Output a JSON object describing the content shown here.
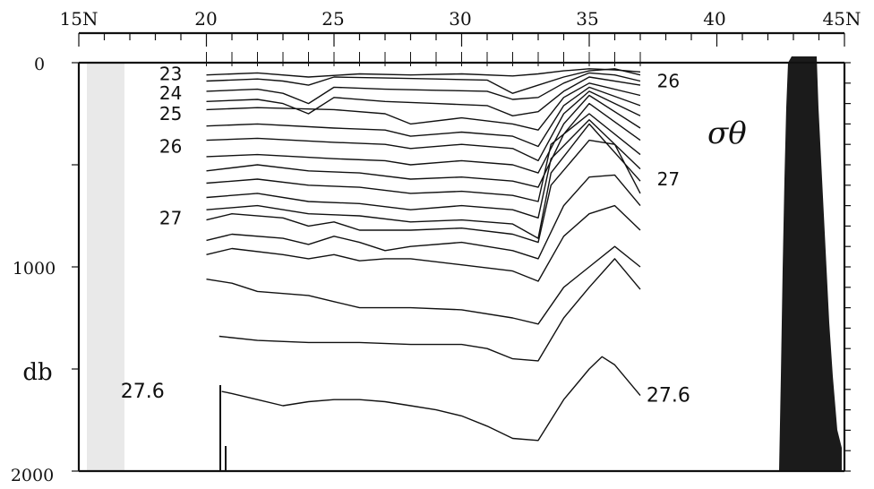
{
  "chart_data": {
    "type": "line",
    "title": "",
    "parameter_label": "σθ",
    "x_axis": {
      "ticks": [
        "15N",
        "20",
        "25",
        "30",
        "35",
        "40",
        "45N"
      ],
      "range": [
        15,
        45
      ]
    },
    "y_axis": {
      "ticks": [
        "0",
        "1000",
        "2000"
      ],
      "unit_label": "db",
      "range": [
        0,
        2000
      ],
      "orientation": "depth-down"
    },
    "contour_labels": [
      {
        "text": "23",
        "x": 18.6,
        "y": 55
      },
      {
        "text": "24",
        "x": 18.6,
        "y": 150
      },
      {
        "text": "25",
        "x": 18.6,
        "y": 250
      },
      {
        "text": "26",
        "x": 18.6,
        "y": 410
      },
      {
        "text": "27",
        "x": 18.6,
        "y": 760
      },
      {
        "text": "26",
        "x": 38.1,
        "y": 90
      },
      {
        "text": "27",
        "x": 38.1,
        "y": 570
      },
      {
        "text": "27.6",
        "x": 17.5,
        "y": 1610
      },
      {
        "text": "27.6",
        "x": 38.1,
        "y": 1630
      }
    ],
    "series": [
      {
        "values": [
          [
            20,
            60
          ],
          [
            22,
            50
          ],
          [
            24,
            70
          ],
          [
            26,
            55
          ],
          [
            28,
            60
          ],
          [
            30,
            55
          ],
          [
            32,
            65
          ],
          [
            33,
            55
          ],
          [
            34,
            40
          ],
          [
            35,
            30
          ],
          [
            36,
            35
          ],
          [
            37,
            45
          ]
        ]
      },
      {
        "values": [
          [
            20,
            90
          ],
          [
            22,
            80
          ],
          [
            23,
            90
          ],
          [
            24,
            110
          ],
          [
            25,
            70
          ],
          [
            27,
            75
          ],
          [
            29,
            80
          ],
          [
            31,
            85
          ],
          [
            32,
            150
          ],
          [
            33,
            110
          ],
          [
            34,
            70
          ],
          [
            35,
            40
          ],
          [
            36,
            30
          ],
          [
            37,
            60
          ]
        ]
      },
      {
        "values": [
          [
            20,
            140
          ],
          [
            22,
            130
          ],
          [
            23,
            150
          ],
          [
            24,
            200
          ],
          [
            25,
            120
          ],
          [
            27,
            130
          ],
          [
            29,
            135
          ],
          [
            31,
            140
          ],
          [
            32,
            180
          ],
          [
            33,
            170
          ],
          [
            34,
            100
          ],
          [
            35,
            50
          ],
          [
            36,
            60
          ],
          [
            37,
            90
          ]
        ]
      },
      {
        "values": [
          [
            20,
            190
          ],
          [
            22,
            180
          ],
          [
            23,
            200
          ],
          [
            24,
            250
          ],
          [
            25,
            170
          ],
          [
            27,
            190
          ],
          [
            29,
            200
          ],
          [
            31,
            210
          ],
          [
            32,
            260
          ],
          [
            33,
            240
          ],
          [
            34,
            140
          ],
          [
            35,
            70
          ],
          [
            37,
            110
          ]
        ]
      },
      {
        "values": [
          [
            20,
            230
          ],
          [
            22,
            220
          ],
          [
            25,
            230
          ],
          [
            27,
            250
          ],
          [
            28,
            300
          ],
          [
            30,
            270
          ],
          [
            32,
            300
          ],
          [
            33,
            330
          ],
          [
            34,
            170
          ],
          [
            35,
            100
          ],
          [
            37,
            160
          ]
        ]
      },
      {
        "values": [
          [
            20,
            310
          ],
          [
            22,
            300
          ],
          [
            25,
            320
          ],
          [
            27,
            330
          ],
          [
            28,
            360
          ],
          [
            30,
            340
          ],
          [
            32,
            360
          ],
          [
            33,
            410
          ],
          [
            34,
            210
          ],
          [
            35,
            120
          ],
          [
            37,
            210
          ]
        ]
      },
      {
        "values": [
          [
            20,
            380
          ],
          [
            22,
            370
          ],
          [
            25,
            390
          ],
          [
            27,
            400
          ],
          [
            28,
            420
          ],
          [
            30,
            400
          ],
          [
            32,
            420
          ],
          [
            33,
            480
          ],
          [
            34,
            250
          ],
          [
            35,
            140
          ],
          [
            37,
            260
          ]
        ]
      },
      {
        "values": [
          [
            20,
            460
          ],
          [
            22,
            450
          ],
          [
            25,
            470
          ],
          [
            27,
            480
          ],
          [
            28,
            500
          ],
          [
            30,
            480
          ],
          [
            32,
            500
          ],
          [
            33,
            540
          ],
          [
            34,
            300
          ],
          [
            35,
            160
          ],
          [
            37,
            320
          ]
        ]
      },
      {
        "values": [
          [
            20,
            530
          ],
          [
            22,
            500
          ],
          [
            24,
            530
          ],
          [
            26,
            540
          ],
          [
            28,
            570
          ],
          [
            30,
            560
          ],
          [
            32,
            580
          ],
          [
            33,
            610
          ],
          [
            34,
            350
          ],
          [
            35,
            200
          ],
          [
            37,
            380
          ]
        ]
      },
      {
        "values": [
          [
            20,
            590
          ],
          [
            22,
            570
          ],
          [
            24,
            600
          ],
          [
            26,
            610
          ],
          [
            28,
            640
          ],
          [
            30,
            630
          ],
          [
            32,
            650
          ],
          [
            33,
            680
          ],
          [
            33.5,
            400
          ],
          [
            35,
            250
          ],
          [
            37,
            450
          ]
        ]
      },
      {
        "values": [
          [
            20,
            660
          ],
          [
            22,
            640
          ],
          [
            24,
            680
          ],
          [
            26,
            690
          ],
          [
            28,
            720
          ],
          [
            30,
            700
          ],
          [
            32,
            720
          ],
          [
            33,
            760
          ],
          [
            33.5,
            470
          ],
          [
            35,
            280
          ],
          [
            37,
            520
          ]
        ]
      },
      {
        "values": [
          [
            20,
            720
          ],
          [
            22,
            700
          ],
          [
            24,
            740
          ],
          [
            26,
            750
          ],
          [
            28,
            780
          ],
          [
            30,
            770
          ],
          [
            32,
            790
          ],
          [
            33,
            860
          ],
          [
            33.5,
            540
          ],
          [
            35,
            300
          ],
          [
            37,
            580
          ]
        ]
      },
      {
        "values": [
          [
            20,
            770
          ],
          [
            21,
            740
          ],
          [
            23,
            760
          ],
          [
            24,
            800
          ],
          [
            25,
            780
          ],
          [
            26,
            820
          ],
          [
            28,
            820
          ],
          [
            30,
            810
          ],
          [
            32,
            840
          ],
          [
            33,
            880
          ],
          [
            33.5,
            600
          ],
          [
            35,
            380
          ],
          [
            36,
            400
          ],
          [
            37,
            640
          ]
        ]
      },
      {
        "values": [
          [
            20,
            870
          ],
          [
            21,
            840
          ],
          [
            23,
            860
          ],
          [
            24,
            890
          ],
          [
            25,
            850
          ],
          [
            26,
            880
          ],
          [
            27,
            920
          ],
          [
            28,
            900
          ],
          [
            30,
            880
          ],
          [
            32,
            920
          ],
          [
            33,
            960
          ],
          [
            34,
            700
          ],
          [
            35,
            560
          ],
          [
            36,
            550
          ],
          [
            37,
            700
          ]
        ]
      },
      {
        "values": [
          [
            20,
            940
          ],
          [
            21,
            910
          ],
          [
            23,
            940
          ],
          [
            24,
            960
          ],
          [
            25,
            940
          ],
          [
            26,
            970
          ],
          [
            27,
            960
          ],
          [
            28,
            960
          ],
          [
            30,
            990
          ],
          [
            32,
            1020
          ],
          [
            33,
            1070
          ],
          [
            34,
            850
          ],
          [
            35,
            740
          ],
          [
            36,
            700
          ],
          [
            37,
            820
          ]
        ]
      },
      {
        "values": [
          [
            20,
            1060
          ],
          [
            21,
            1080
          ],
          [
            22,
            1120
          ],
          [
            24,
            1140
          ],
          [
            25,
            1170
          ],
          [
            26,
            1200
          ],
          [
            28,
            1200
          ],
          [
            30,
            1210
          ],
          [
            32,
            1250
          ],
          [
            33,
            1280
          ],
          [
            34,
            1100
          ],
          [
            35,
            1000
          ],
          [
            36,
            900
          ],
          [
            37,
            1000
          ]
        ]
      },
      {
        "values": [
          [
            20.5,
            1340
          ],
          [
            22,
            1360
          ],
          [
            24,
            1370
          ],
          [
            26,
            1370
          ],
          [
            28,
            1380
          ],
          [
            30,
            1380
          ],
          [
            31,
            1400
          ],
          [
            32,
            1450
          ],
          [
            33,
            1460
          ],
          [
            34,
            1250
          ],
          [
            35,
            1100
          ],
          [
            36,
            960
          ],
          [
            37,
            1110
          ]
        ]
      },
      {
        "values": [
          [
            20.6,
            1610
          ],
          [
            21,
            1620
          ],
          [
            22,
            1650
          ],
          [
            23,
            1680
          ],
          [
            24,
            1660
          ],
          [
            25,
            1650
          ],
          [
            26,
            1650
          ],
          [
            27,
            1660
          ],
          [
            28,
            1680
          ],
          [
            29,
            1700
          ],
          [
            30,
            1730
          ],
          [
            31,
            1780
          ],
          [
            32,
            1840
          ],
          [
            33,
            1850
          ],
          [
            34,
            1650
          ],
          [
            35,
            1500
          ],
          [
            35.5,
            1440
          ],
          [
            36,
            1480
          ],
          [
            37,
            1630
          ]
        ]
      }
    ]
  }
}
